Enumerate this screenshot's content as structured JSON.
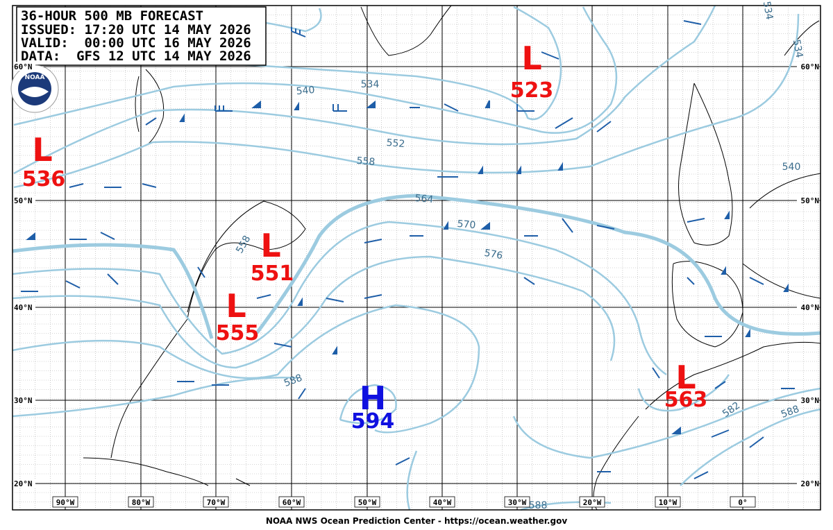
{
  "header": {
    "lines": [
      "36-HOUR 500 MB FORECAST",
      "ISSUED: 17:20 UTC 14 MAY 2026",
      "VALID:  00:00 UTC 16 MAY 2026",
      "DATA:  GFS 12 UTC 14 MAY 2026"
    ]
  },
  "logo": "NOAA",
  "centers": [
    {
      "symbol": "L",
      "value": "536"
    },
    {
      "symbol": "L",
      "value": "551"
    },
    {
      "symbol": "L",
      "value": "555"
    },
    {
      "symbol": "L",
      "value": "523"
    },
    {
      "symbol": "H",
      "value": "594"
    },
    {
      "symbol": "L",
      "value": "563"
    }
  ],
  "contour_labels": [
    "540",
    "534",
    "552",
    "558",
    "564",
    "570",
    "576",
    "558",
    "588",
    "582",
    "588",
    "540",
    "534",
    "534",
    "588"
  ],
  "lat_labels": [
    "60°N",
    "50°N",
    "40°N",
    "30°N",
    "20°N"
  ],
  "lon_labels": [
    "90°W",
    "80°W",
    "70°W",
    "60°W",
    "50°W",
    "40°W",
    "30°W",
    "20°W",
    "10°W",
    "0°"
  ],
  "footer": "NOAA NWS Ocean Prediction Center - https://ocean.weather.gov"
}
